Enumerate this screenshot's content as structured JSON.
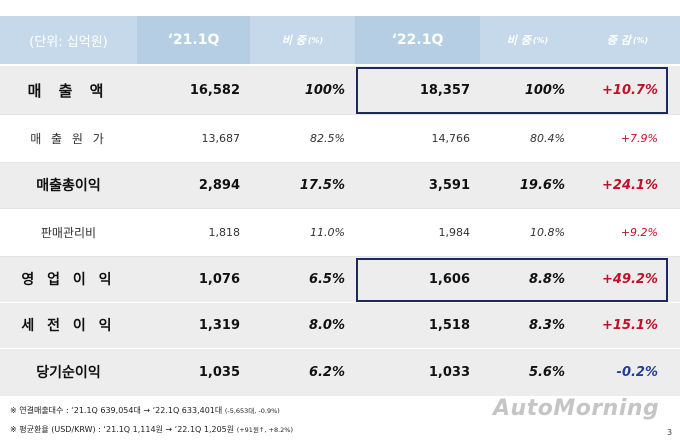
{
  "header": {
    "unit": "(단위: 십억원)",
    "q1_label": "‘21.1Q",
    "q1_share": "비 중",
    "q1_share_unit": "(%)",
    "q2_label": "‘22.1Q",
    "q2_share": "비 중",
    "q2_share_unit": "(%)",
    "change": "증 감",
    "change_unit": "(%)"
  },
  "rows": [
    {
      "label": "매 출 액",
      "v21": "16,582",
      "s21": "100%",
      "v22": "18,357",
      "s22": "100%",
      "chg": "+10.7%"
    },
    {
      "label": "매 출 원 가",
      "v21": "13,687",
      "s21": "82.5%",
      "v22": "14,766",
      "s22": "80.4%",
      "chg": "+7.9%"
    },
    {
      "label": "매출총이익",
      "v21": "2,894",
      "s21": "17.5%",
      "v22": "3,591",
      "s22": "19.6%",
      "chg": "+24.1%"
    },
    {
      "label": "판매관리비",
      "v21": "1,818",
      "s21": "11.0%",
      "v22": "1,984",
      "s22": "10.8%",
      "chg": "+9.2%"
    },
    {
      "label": "영 업 이 익",
      "v21": "1,076",
      "s21": "6.5%",
      "v22": "1,606",
      "s22": "8.8%",
      "chg": "+49.2%"
    },
    {
      "label": "세 전 이 익",
      "v21": "1,319",
      "s21": "8.0%",
      "v22": "1,518",
      "s22": "8.3%",
      "chg": "+15.1%"
    },
    {
      "label": "당기순이익",
      "v21": "1,035",
      "s21": "6.2%",
      "v22": "1,033",
      "s22": "5.6%",
      "chg": "-0.2%"
    }
  ],
  "notes": {
    "n1_main": "※  연결매출대수 : ‘21.1Q 639,054대  →  ‘22.1Q 633,401대",
    "n1_small": "(-5,653대, -0.9%)",
    "n2_main": "※  평균환율 (USD/KRW) : ‘21.1Q 1,114원  →  ‘22.1Q 1,205원",
    "n2_small": "(+91원↑, +8.2%)"
  },
  "watermark": "AutoMorning",
  "page_number": "3",
  "colors": {
    "header_bg": "#c5d9ea",
    "highlight_border": "#1f2a5c",
    "positive_change": "#c0102a",
    "negative_change": "#1f3f9a",
    "shaded_row": "#eaeaea"
  }
}
